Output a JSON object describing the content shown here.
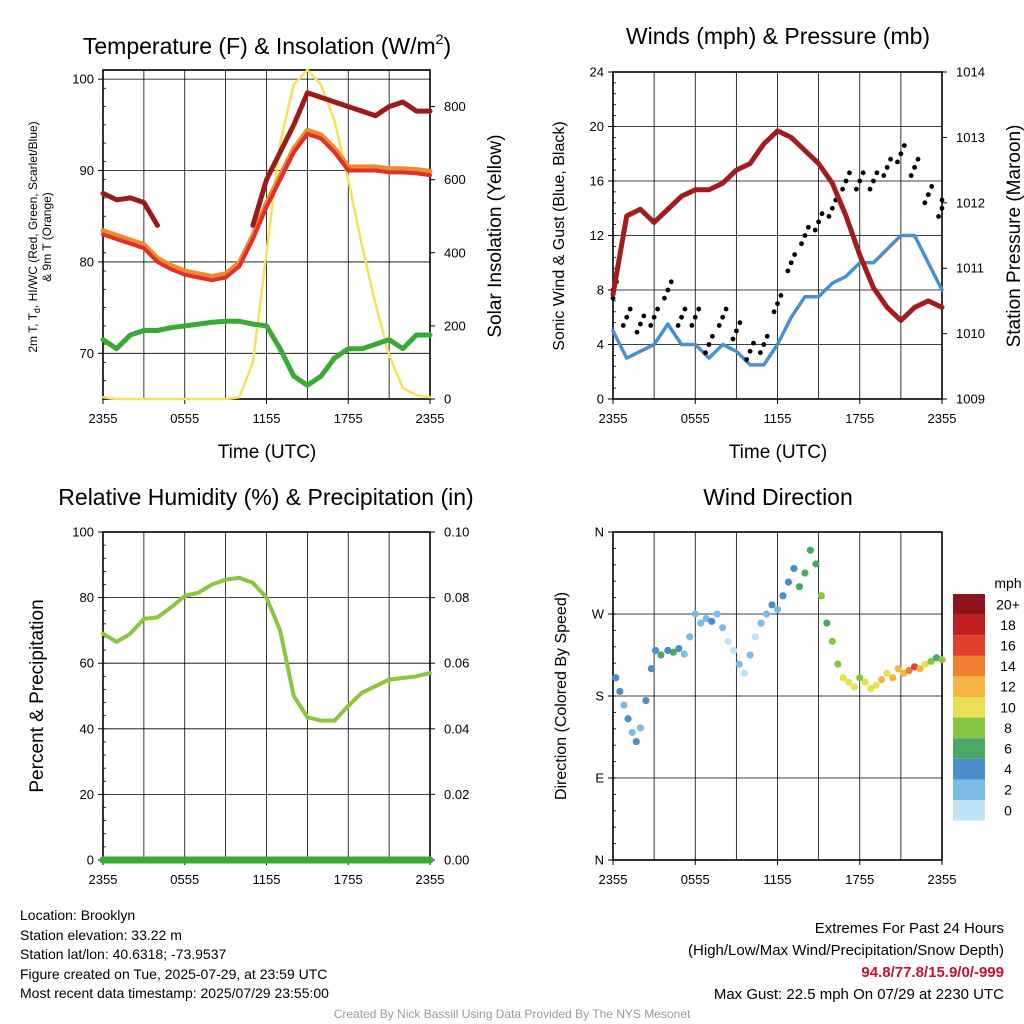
{
  "colors": {
    "dewpoint": "#3aaa35",
    "temp": "#e0302a",
    "temp_orange": "#f08a2c",
    "hiwc": "#9b1b1b",
    "insolation": "#f5e15a",
    "wind": "#4a90d0",
    "gust": "#000000",
    "pressure": "#a31c1c",
    "rh": "#8cc63f",
    "precip": "#3aaa35"
  },
  "x_ticks": [
    "2355",
    "0555",
    "1155",
    "1755",
    "2355"
  ],
  "panels": {
    "temp": {
      "title": "Temperature (F) & Insolation (W/m",
      "title_sup": "2",
      "title_end": ")",
      "ylabel_left_1": "2m T, T",
      "ylabel_left_sub": "d",
      "ylabel_left_2": ", HI/WC (Red, Green, Scarlet/Blue)",
      "ylabel_left_3": "& 9m T (Orange)",
      "ylabel_right": "Solar Insolation (Yellow)",
      "xlabel": "Time (UTC)",
      "left_ticks": [
        "70",
        "80",
        "90",
        "100"
      ],
      "right_ticks": [
        "0",
        "200",
        "400",
        "600",
        "800"
      ]
    },
    "winds": {
      "title": "Winds (mph) & Pressure (mb)",
      "ylabel_left": "Sonic Wind & Gust (Blue, Black)",
      "ylabel_right": "Station Pressure (Maroon)",
      "xlabel": "Time (UTC)",
      "left_ticks": [
        "0",
        "4",
        "8",
        "12",
        "16",
        "20",
        "24"
      ],
      "right_ticks": [
        "1009",
        "1010",
        "1011",
        "1012",
        "1013",
        "1014"
      ]
    },
    "rh": {
      "title": "Relative Humidity (%) & Precipitation (in)",
      "ylabel_left": "Percent & Precipitation",
      "left_ticks": [
        "0",
        "20",
        "40",
        "60",
        "80",
        "100"
      ],
      "right_ticks": [
        "0.00",
        "0.02",
        "0.04",
        "0.06",
        "0.08",
        "0.10"
      ]
    },
    "wdir": {
      "title": "Wind Direction",
      "ylabel_left": "Direction (Colored By Speed)",
      "left_ticks": [
        "N",
        "E",
        "S",
        "W",
        "N"
      ],
      "legend_title": "mph",
      "legend_labels": [
        "0",
        "2",
        "4",
        "6",
        "8",
        "10",
        "12",
        "14",
        "16",
        "18",
        "20+"
      ],
      "legend_colors": [
        "#bfe4f6",
        "#7bbbe6",
        "#4b8ec9",
        "#4aa866",
        "#86c443",
        "#e8df52",
        "#f6b444",
        "#ef8030",
        "#e0402c",
        "#c11f22",
        "#8e1419"
      ]
    }
  },
  "chart_data": [
    {
      "type": "line",
      "title": "Temperature (F) & Insolation (W/m2)",
      "xlabel": "Time (UTC)",
      "ylabel": "2m T, Td, HI/WC (Red, Green, Scarlet/Blue) & 9m T (Orange)",
      "ylabel_right": "Solar Insolation (Yellow)",
      "x_hours": [
        0,
        1,
        2,
        3,
        4,
        5,
        6,
        7,
        8,
        9,
        10,
        11,
        12,
        13,
        14,
        15,
        16,
        17,
        18,
        19,
        20,
        21,
        22,
        23,
        24
      ],
      "x_tick_labels": [
        "2355",
        "0555",
        "1155",
        "1755",
        "2355"
      ],
      "ylim": [
        65,
        101
      ],
      "ylim_right": [
        0,
        900
      ],
      "series": [
        {
          "name": "2m T",
          "axis": "left",
          "values": [
            83,
            82.5,
            82,
            81.5,
            80,
            79.2,
            78.6,
            78.3,
            78,
            78.3,
            79.5,
            82.5,
            86,
            89,
            92,
            94,
            93.5,
            92,
            90,
            90,
            90,
            89.8,
            89.8,
            89.7,
            89.5
          ]
        },
        {
          "name": "HI/WC",
          "axis": "left",
          "values": [
            87.5,
            86.8,
            87,
            86.5,
            84,
            null,
            null,
            null,
            null,
            null,
            null,
            84,
            89,
            92,
            95,
            98.5,
            98,
            97.5,
            97,
            96.5,
            96,
            97,
            97.5,
            96.5,
            96.5
          ]
        },
        {
          "name": "Td",
          "axis": "left",
          "values": [
            71.5,
            70.5,
            72,
            72.5,
            72.5,
            72.8,
            73,
            73.2,
            73.4,
            73.5,
            73.5,
            73.2,
            73,
            70.5,
            67.5,
            66.5,
            67.5,
            69.5,
            70.5,
            70.5,
            71,
            71.5,
            70.5,
            72,
            72
          ]
        },
        {
          "name": "Solar Insolation",
          "axis": "right",
          "values": [
            5,
            0,
            0,
            0,
            0,
            0,
            0,
            0,
            0,
            0,
            5,
            100,
            400,
            700,
            860,
            900,
            860,
            760,
            600,
            420,
            260,
            120,
            30,
            10,
            5
          ]
        }
      ]
    },
    {
      "type": "line",
      "title": "Winds (mph) & Pressure (mb)",
      "xlabel": "Time (UTC)",
      "ylabel": "Sonic Wind & Gust (Blue, Black)",
      "ylabel_right": "Station Pressure (Maroon)",
      "x_hours": [
        0,
        1,
        2,
        3,
        4,
        5,
        6,
        7,
        8,
        9,
        10,
        11,
        12,
        13,
        14,
        15,
        16,
        17,
        18,
        19,
        20,
        21,
        22,
        23,
        24
      ],
      "x_tick_labels": [
        "2355",
        "0555",
        "1155",
        "1755",
        "2355"
      ],
      "ylim": [
        0,
        24
      ],
      "ylim_right": [
        1009,
        1014
      ],
      "series": [
        {
          "name": "Sonic Wind",
          "axis": "left",
          "values": [
            5,
            3,
            3.5,
            4,
            5.5,
            4,
            4,
            3,
            4,
            3.5,
            2.5,
            2.5,
            4,
            6,
            7.5,
            7.5,
            8.5,
            9,
            10,
            10,
            11,
            12,
            12,
            10,
            8
          ]
        },
        {
          "name": "Gust",
          "axis": "left",
          "values": [
            8,
            6,
            5.5,
            6,
            8,
            6,
            6,
            4,
            6,
            5,
            3.5,
            4,
            7,
            10,
            12,
            13,
            14,
            16,
            16,
            16,
            17,
            18,
            17,
            15,
            14
          ]
        },
        {
          "name": "Station Pressure",
          "axis": "right",
          "values": [
            1010.6,
            1011.8,
            1011.9,
            1011.7,
            1011.9,
            1012.1,
            1012.2,
            1012.2,
            1012.3,
            1012.5,
            1012.6,
            1012.9,
            1013.1,
            1013.0,
            1012.8,
            1012.6,
            1012.3,
            1011.8,
            1011.2,
            1010.7,
            1010.4,
            1010.2,
            1010.4,
            1010.5,
            1010.4
          ]
        }
      ]
    },
    {
      "type": "line",
      "title": "Relative Humidity (%) & Precipitation (in)",
      "ylabel": "Percent & Precipitation",
      "x_hours": [
        0,
        1,
        2,
        3,
        4,
        5,
        6,
        7,
        8,
        9,
        10,
        11,
        12,
        13,
        14,
        15,
        16,
        17,
        18,
        19,
        20,
        21,
        22,
        23,
        24
      ],
      "x_tick_labels": [
        "2355",
        "0555",
        "1155",
        "1755",
        "2355"
      ],
      "ylim": [
        0,
        100
      ],
      "ylim_right": [
        0,
        0.1
      ],
      "series": [
        {
          "name": "Relative Humidity",
          "axis": "left",
          "values": [
            69,
            66.5,
            69,
            73.5,
            74,
            77,
            80.5,
            81.5,
            84,
            85.5,
            86,
            84.5,
            80,
            70,
            50,
            43.5,
            42.5,
            42.5,
            47,
            51,
            53,
            55,
            55.5,
            56,
            57
          ]
        },
        {
          "name": "Precipitation",
          "axis": "right",
          "values": [
            0,
            0,
            0,
            0,
            0,
            0,
            0,
            0,
            0,
            0,
            0,
            0,
            0,
            0,
            0,
            0,
            0,
            0,
            0,
            0,
            0,
            0,
            0,
            0,
            0
          ]
        }
      ]
    },
    {
      "type": "scatter",
      "title": "Wind Direction",
      "ylabel": "Direction (Colored By Speed)",
      "x_tick_labels": [
        "2355",
        "0555",
        "1155",
        "1755",
        "2355"
      ],
      "y_tick_labels": [
        "N",
        "E",
        "S",
        "W",
        "N"
      ],
      "ylim": [
        0,
        360
      ],
      "legend_title": "mph",
      "legend_labels": [
        "0",
        "2",
        "4",
        "6",
        "8",
        "10",
        "12",
        "14",
        "16",
        "18",
        "20+"
      ],
      "points": [
        {
          "x": 0.2,
          "y": 200,
          "speed": 4
        },
        {
          "x": 0.5,
          "y": 185,
          "speed": 5
        },
        {
          "x": 0.8,
          "y": 170,
          "speed": 3
        },
        {
          "x": 1.1,
          "y": 155,
          "speed": 4
        },
        {
          "x": 1.4,
          "y": 140,
          "speed": 3
        },
        {
          "x": 1.7,
          "y": 130,
          "speed": 4
        },
        {
          "x": 2.0,
          "y": 145,
          "speed": 3
        },
        {
          "x": 2.4,
          "y": 175,
          "speed": 4
        },
        {
          "x": 2.8,
          "y": 210,
          "speed": 4
        },
        {
          "x": 3.1,
          "y": 230,
          "speed": 5
        },
        {
          "x": 3.5,
          "y": 225,
          "speed": 6
        },
        {
          "x": 4.0,
          "y": 230,
          "speed": 5
        },
        {
          "x": 4.4,
          "y": 228,
          "speed": 6
        },
        {
          "x": 4.8,
          "y": 232,
          "speed": 5
        },
        {
          "x": 5.2,
          "y": 226,
          "speed": 3
        },
        {
          "x": 5.6,
          "y": 245,
          "speed": 2
        },
        {
          "x": 6.0,
          "y": 270,
          "speed": 2
        },
        {
          "x": 6.4,
          "y": 260,
          "speed": 3
        },
        {
          "x": 6.8,
          "y": 265,
          "speed": 3
        },
        {
          "x": 7.2,
          "y": 262,
          "speed": 4
        },
        {
          "x": 7.6,
          "y": 270,
          "speed": 3
        },
        {
          "x": 8.0,
          "y": 255,
          "speed": 2
        },
        {
          "x": 8.4,
          "y": 240,
          "speed": 1
        },
        {
          "x": 8.8,
          "y": 230,
          "speed": 1
        },
        {
          "x": 9.2,
          "y": 215,
          "speed": 2
        },
        {
          "x": 9.6,
          "y": 205,
          "speed": 1
        },
        {
          "x": 10.0,
          "y": 225,
          "speed": 2
        },
        {
          "x": 10.4,
          "y": 245,
          "speed": 1
        },
        {
          "x": 10.8,
          "y": 260,
          "speed": 2
        },
        {
          "x": 11.2,
          "y": 270,
          "speed": 3
        },
        {
          "x": 11.6,
          "y": 280,
          "speed": 4
        },
        {
          "x": 12.0,
          "y": 275,
          "speed": 3
        },
        {
          "x": 12.4,
          "y": 290,
          "speed": 4
        },
        {
          "x": 12.8,
          "y": 305,
          "speed": 5
        },
        {
          "x": 13.2,
          "y": 320,
          "speed": 5
        },
        {
          "x": 13.6,
          "y": 300,
          "speed": 6
        },
        {
          "x": 14.0,
          "y": 315,
          "speed": 7
        },
        {
          "x": 14.4,
          "y": 340,
          "speed": 6
        },
        {
          "x": 14.8,
          "y": 325,
          "speed": 7
        },
        {
          "x": 15.2,
          "y": 290,
          "speed": 8
        },
        {
          "x": 15.6,
          "y": 260,
          "speed": 7
        },
        {
          "x": 16.0,
          "y": 240,
          "speed": 8
        },
        {
          "x": 16.4,
          "y": 215,
          "speed": 9
        },
        {
          "x": 16.8,
          "y": 200,
          "speed": 10
        },
        {
          "x": 17.2,
          "y": 195,
          "speed": 11
        },
        {
          "x": 17.6,
          "y": 190,
          "speed": 10
        },
        {
          "x": 18.0,
          "y": 200,
          "speed": 9
        },
        {
          "x": 18.4,
          "y": 195,
          "speed": 10
        },
        {
          "x": 18.8,
          "y": 188,
          "speed": 11
        },
        {
          "x": 19.2,
          "y": 192,
          "speed": 10
        },
        {
          "x": 19.6,
          "y": 198,
          "speed": 12
        },
        {
          "x": 20.0,
          "y": 205,
          "speed": 11
        },
        {
          "x": 20.4,
          "y": 200,
          "speed": 12
        },
        {
          "x": 20.8,
          "y": 210,
          "speed": 13
        },
        {
          "x": 21.2,
          "y": 205,
          "speed": 12
        },
        {
          "x": 21.6,
          "y": 208,
          "speed": 14
        },
        {
          "x": 22.0,
          "y": 212,
          "speed": 16
        },
        {
          "x": 22.4,
          "y": 210,
          "speed": 12
        },
        {
          "x": 22.8,
          "y": 215,
          "speed": 10
        },
        {
          "x": 23.2,
          "y": 218,
          "speed": 9
        },
        {
          "x": 23.6,
          "y": 222,
          "speed": 7
        },
        {
          "x": 24.0,
          "y": 220,
          "speed": 8
        }
      ]
    }
  ],
  "footer": {
    "location": "Location: Brooklyn",
    "elevation": "Station elevation: 33.22 m",
    "latlon": "Station lat/lon: 40.6318; -73.9537",
    "created": "Figure created on Tue, 2025-07-29, at 23:59 UTC",
    "recent": "Most recent data timestamp: 2025/07/29 23:55:00",
    "extremes_title": "Extremes For Past 24 Hours",
    "extremes_subtitle": "(High/Low/Max Wind/Precipitation/Snow Depth)",
    "extremes_values": "94.8/77.8/15.9/0/-999",
    "max_gust": "Max Gust: 22.5 mph On 07/29 at 2230 UTC",
    "credit": "Created By Nick Bassill Using Data Provided By The NYS Mesonet"
  }
}
